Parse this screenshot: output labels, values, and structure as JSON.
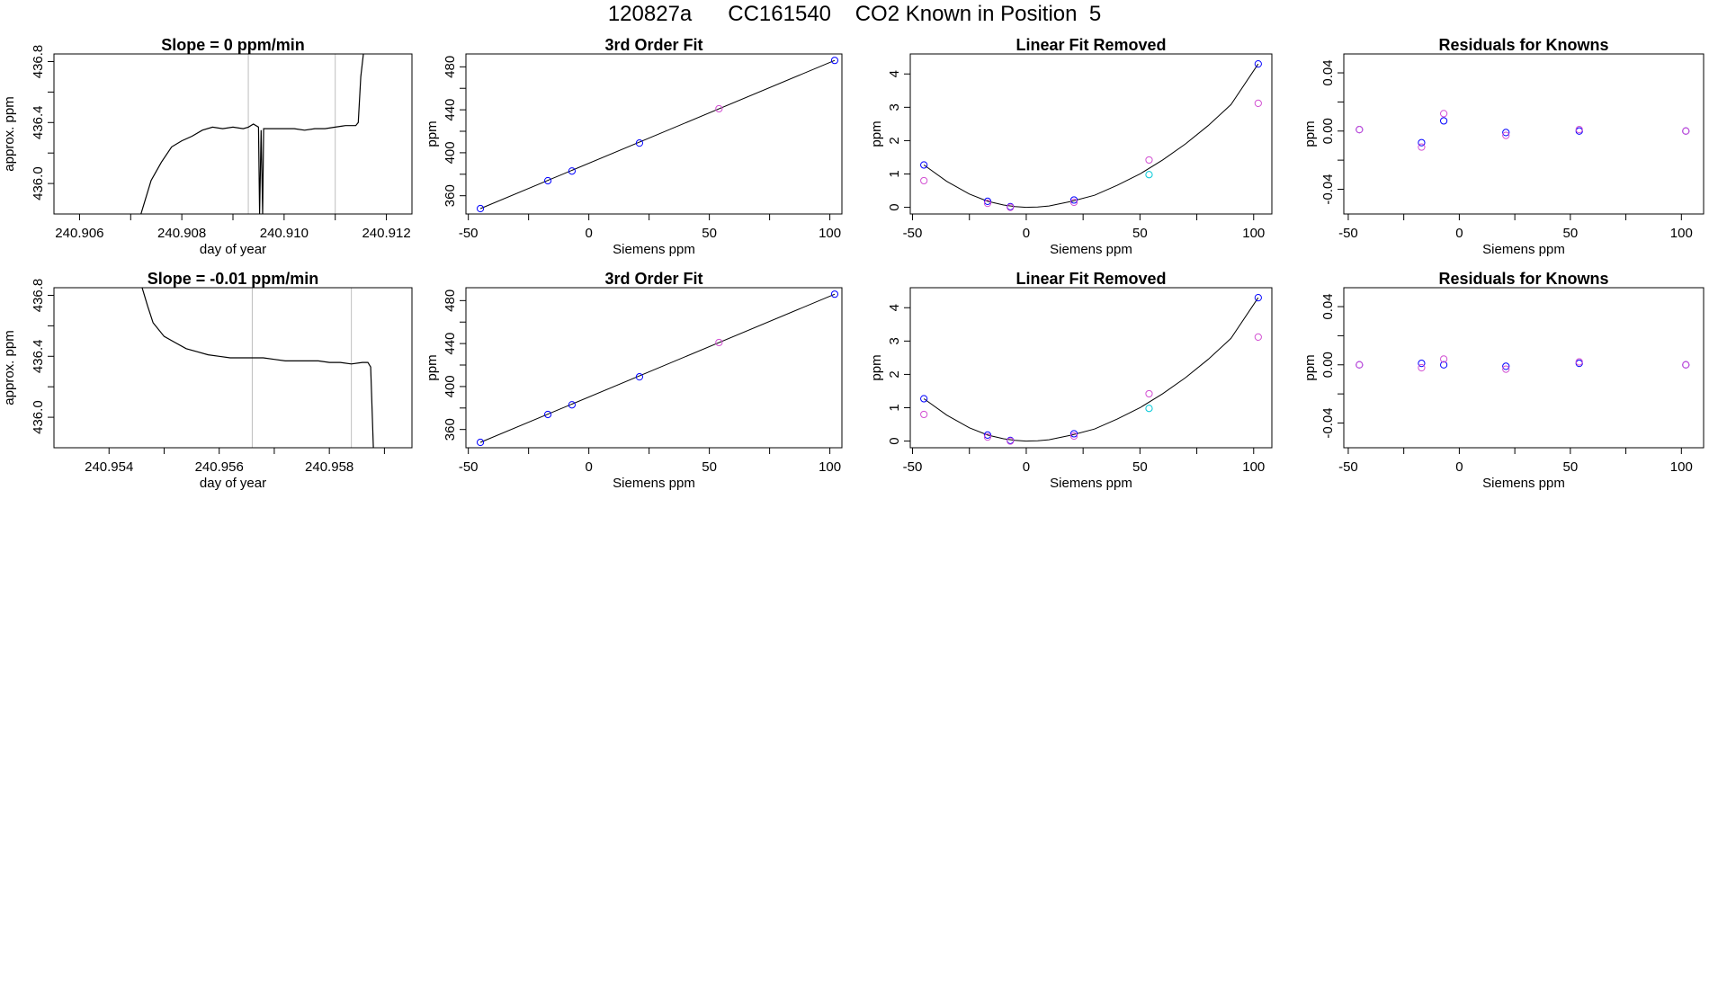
{
  "page_title": "120827a      CC161540    CO2 Known in Position  5",
  "colors": {
    "trace": "#000000",
    "gridline": "#bebebe",
    "blue": "#0000ff",
    "magenta": "#d24fd2",
    "cyan": "#00c8d8",
    "fit_line": "#000000"
  },
  "chart_data": [
    {
      "id": "r1c1",
      "type": "line",
      "title": "Slope =  0  ppm/min",
      "xlabel": "day of year",
      "ylabel": "approx. ppm",
      "xlim": [
        240.9055,
        240.9125
      ],
      "ylim": [
        435.8,
        436.85
      ],
      "xticks": [
        240.906,
        240.907,
        240.908,
        240.909,
        240.91,
        240.911,
        240.912
      ],
      "xticklabels": [
        "240.906",
        "",
        "240.908",
        "",
        "240.910",
        "",
        "240.912"
      ],
      "yticks": [
        436.0,
        436.2,
        436.4,
        436.6,
        436.8
      ],
      "yticklabels": [
        "436.0",
        "",
        "436.4",
        "",
        "436.8"
      ],
      "vlines": [
        240.9093,
        240.911
      ],
      "x": [
        240.9072,
        240.9074,
        240.9076,
        240.9078,
        240.908,
        240.9082,
        240.9084,
        240.9086,
        240.9088,
        240.909,
        240.9092,
        240.9093,
        240.9094,
        240.9095,
        240.90952,
        240.90955,
        240.90958,
        240.9096,
        240.9098,
        240.91,
        240.9102,
        240.9104,
        240.9106,
        240.9108,
        240.911,
        240.9112,
        240.9114,
        240.91145,
        240.9115,
        240.91155
      ],
      "y": [
        435.8,
        436.02,
        436.14,
        436.24,
        436.28,
        436.31,
        436.35,
        436.37,
        436.36,
        436.37,
        436.36,
        436.37,
        436.39,
        436.37,
        435.8,
        436.35,
        435.8,
        436.36,
        436.36,
        436.36,
        436.36,
        436.35,
        436.36,
        436.36,
        436.37,
        436.38,
        436.38,
        436.4,
        436.7,
        436.85
      ]
    },
    {
      "id": "r1c2",
      "type": "scatter",
      "title": "3rd Order Fit",
      "xlabel": "Siemens ppm",
      "ylabel": "ppm",
      "xlim": [
        -51,
        105
      ],
      "ylim": [
        343,
        492
      ],
      "xticks": [
        -50,
        -25,
        0,
        25,
        50,
        75,
        100
      ],
      "xticklabels": [
        "-50",
        "",
        "0",
        "",
        "50",
        "",
        "100"
      ],
      "yticks": [
        360,
        380,
        400,
        420,
        440,
        460,
        480
      ],
      "yticklabels": [
        "360",
        "",
        "400",
        "",
        "440",
        "",
        "480"
      ],
      "fit_line": {
        "x": [
          -45,
          102
        ],
        "y": [
          348,
          486
        ]
      },
      "series": [
        {
          "color": "blue",
          "x": [
            -45,
            -17,
            -7,
            21,
            102
          ],
          "y": [
            348,
            374,
            383,
            409,
            486
          ]
        },
        {
          "color": "magenta",
          "x": [
            54
          ],
          "y": [
            441
          ]
        }
      ]
    },
    {
      "id": "r1c3",
      "type": "scatter",
      "title": "Linear Fit Removed",
      "xlabel": "Siemens ppm",
      "ylabel": "ppm",
      "xlim": [
        -51,
        108
      ],
      "ylim": [
        -0.2,
        4.6
      ],
      "xticks": [
        -50,
        -25,
        0,
        25,
        50,
        75,
        100
      ],
      "xticklabels": [
        "-50",
        "",
        "0",
        "",
        "50",
        "",
        "100"
      ],
      "yticks": [
        0,
        1,
        2,
        3,
        4
      ],
      "yticklabels": [
        "0",
        "1",
        "2",
        "3",
        "4"
      ],
      "fit_curve": {
        "x": [
          -45,
          -35,
          -25,
          -17,
          -10,
          -5,
          0,
          5,
          10,
          20,
          30,
          40,
          50,
          60,
          70,
          80,
          90,
          102
        ],
        "y": [
          1.27,
          0.78,
          0.4,
          0.18,
          0.07,
          0.02,
          0.0,
          0.01,
          0.04,
          0.18,
          0.36,
          0.66,
          1.0,
          1.42,
          1.9,
          2.45,
          3.08,
          4.3
        ]
      },
      "series": [
        {
          "color": "blue",
          "x": [
            -45,
            -17,
            -7,
            21,
            102
          ],
          "y": [
            1.27,
            0.18,
            0.02,
            0.22,
            4.3
          ]
        },
        {
          "color": "magenta",
          "x": [
            -45,
            -17,
            -7,
            21,
            54,
            102
          ],
          "y": [
            0.8,
            0.12,
            0.0,
            0.15,
            1.42,
            3.12
          ]
        },
        {
          "color": "cyan",
          "x": [
            54
          ],
          "y": [
            0.98
          ]
        }
      ]
    },
    {
      "id": "r1c4",
      "type": "scatter",
      "title": "Residuals for Knowns",
      "xlabel": "Siemens ppm",
      "ylabel": "ppm",
      "xlim": [
        -52,
        110
      ],
      "ylim": [
        -0.057,
        0.053
      ],
      "xticks": [
        -50,
        -25,
        0,
        25,
        50,
        75,
        100
      ],
      "xticklabels": [
        "-50",
        "",
        "0",
        "",
        "50",
        "",
        "100"
      ],
      "yticks": [
        -0.04,
        -0.02,
        0.0,
        0.02,
        0.04
      ],
      "yticklabels": [
        "-0.04",
        "",
        "0.00",
        "",
        "0.04"
      ],
      "series": [
        {
          "color": "blue",
          "x": [
            -45,
            -17,
            -7,
            21,
            54,
            102
          ],
          "y": [
            0.001,
            -0.008,
            0.007,
            -0.001,
            0.0,
            0.0
          ]
        },
        {
          "color": "magenta",
          "x": [
            -45,
            -17,
            -7,
            21,
            54,
            102
          ],
          "y": [
            0.001,
            -0.011,
            0.012,
            -0.003,
            0.001,
            0.0
          ]
        }
      ]
    },
    {
      "id": "r2c1",
      "type": "line",
      "title": "Slope =  -0.01  ppm/min",
      "xlabel": "day of year",
      "ylabel": "approx. ppm",
      "xlim": [
        240.953,
        240.9595
      ],
      "ylim": [
        435.8,
        436.85
      ],
      "xticks": [
        240.954,
        240.955,
        240.956,
        240.957,
        240.958,
        240.959
      ],
      "xticklabels": [
        "240.954",
        "",
        "240.956",
        "",
        "240.958",
        ""
      ],
      "yticks": [
        436.0,
        436.2,
        436.4,
        436.6,
        436.8
      ],
      "yticklabels": [
        "436.0",
        "",
        "436.4",
        "",
        "436.8"
      ],
      "vlines": [
        240.9566,
        240.9584
      ],
      "x": [
        240.9546,
        240.9547,
        240.9548,
        240.955,
        240.9552,
        240.9554,
        240.9556,
        240.9558,
        240.956,
        240.9562,
        240.9564,
        240.9566,
        240.9568,
        240.957,
        240.9572,
        240.9574,
        240.9576,
        240.9578,
        240.958,
        240.9582,
        240.9584,
        240.9586,
        240.9587,
        240.95875,
        240.9588
      ],
      "y": [
        436.85,
        436.73,
        436.62,
        436.53,
        436.49,
        436.45,
        436.43,
        436.41,
        436.4,
        436.39,
        436.39,
        436.39,
        436.39,
        436.38,
        436.37,
        436.37,
        436.37,
        436.37,
        436.36,
        436.36,
        436.35,
        436.36,
        436.36,
        436.33,
        435.8
      ]
    },
    {
      "id": "r2c2",
      "type": "scatter",
      "title": "3rd Order Fit",
      "xlabel": "Siemens ppm",
      "ylabel": "ppm",
      "xlim": [
        -51,
        105
      ],
      "ylim": [
        343,
        492
      ],
      "xticks": [
        -50,
        -25,
        0,
        25,
        50,
        75,
        100
      ],
      "xticklabels": [
        "-50",
        "",
        "0",
        "",
        "50",
        "",
        "100"
      ],
      "yticks": [
        360,
        380,
        400,
        420,
        440,
        460,
        480
      ],
      "yticklabels": [
        "360",
        "",
        "400",
        "",
        "440",
        "",
        "480"
      ],
      "fit_line": {
        "x": [
          -45,
          102
        ],
        "y": [
          348,
          486
        ]
      },
      "series": [
        {
          "color": "blue",
          "x": [
            -45,
            -17,
            -7,
            21,
            102
          ],
          "y": [
            348,
            374,
            383,
            409,
            486
          ]
        },
        {
          "color": "magenta",
          "x": [
            54
          ],
          "y": [
            441
          ]
        }
      ]
    },
    {
      "id": "r2c3",
      "type": "scatter",
      "title": "Linear Fit Removed",
      "xlabel": "Siemens ppm",
      "ylabel": "ppm",
      "xlim": [
        -51,
        108
      ],
      "ylim": [
        -0.2,
        4.6
      ],
      "xticks": [
        -50,
        -25,
        0,
        25,
        50,
        75,
        100
      ],
      "xticklabels": [
        "-50",
        "",
        "0",
        "",
        "50",
        "",
        "100"
      ],
      "yticks": [
        0,
        1,
        2,
        3,
        4
      ],
      "yticklabels": [
        "0",
        "1",
        "2",
        "3",
        "4"
      ],
      "fit_curve": {
        "x": [
          -45,
          -35,
          -25,
          -17,
          -10,
          -5,
          0,
          5,
          10,
          20,
          30,
          40,
          50,
          60,
          70,
          80,
          90,
          102
        ],
        "y": [
          1.27,
          0.78,
          0.4,
          0.18,
          0.07,
          0.02,
          0.0,
          0.01,
          0.04,
          0.18,
          0.36,
          0.66,
          1.0,
          1.42,
          1.9,
          2.45,
          3.08,
          4.3
        ]
      },
      "series": [
        {
          "color": "blue",
          "x": [
            -45,
            -17,
            -7,
            21,
            102
          ],
          "y": [
            1.27,
            0.18,
            0.02,
            0.22,
            4.3
          ]
        },
        {
          "color": "magenta",
          "x": [
            -45,
            -17,
            -7,
            21,
            54,
            102
          ],
          "y": [
            0.8,
            0.12,
            0.0,
            0.15,
            1.42,
            3.12
          ]
        },
        {
          "color": "cyan",
          "x": [
            54
          ],
          "y": [
            0.98
          ]
        }
      ]
    },
    {
      "id": "r2c4",
      "type": "scatter",
      "title": "Residuals for Knowns",
      "xlabel": "Siemens ppm",
      "ylabel": "ppm",
      "xlim": [
        -52,
        110
      ],
      "ylim": [
        -0.057,
        0.053
      ],
      "xticks": [
        -50,
        -25,
        0,
        25,
        50,
        75,
        100
      ],
      "xticklabels": [
        "-50",
        "",
        "0",
        "",
        "50",
        "",
        "100"
      ],
      "yticks": [
        -0.04,
        -0.02,
        0.0,
        0.02,
        0.04
      ],
      "yticklabels": [
        "-0.04",
        "",
        "0.00",
        "",
        "0.04"
      ],
      "series": [
        {
          "color": "blue",
          "x": [
            -45,
            -17,
            -7,
            21,
            54,
            102
          ],
          "y": [
            0.0,
            0.001,
            0.0,
            -0.001,
            0.001,
            0.0
          ]
        },
        {
          "color": "magenta",
          "x": [
            -45,
            -17,
            -7,
            21,
            54,
            102
          ],
          "y": [
            0.0,
            -0.002,
            0.004,
            -0.003,
            0.002,
            0.0
          ]
        }
      ]
    }
  ]
}
